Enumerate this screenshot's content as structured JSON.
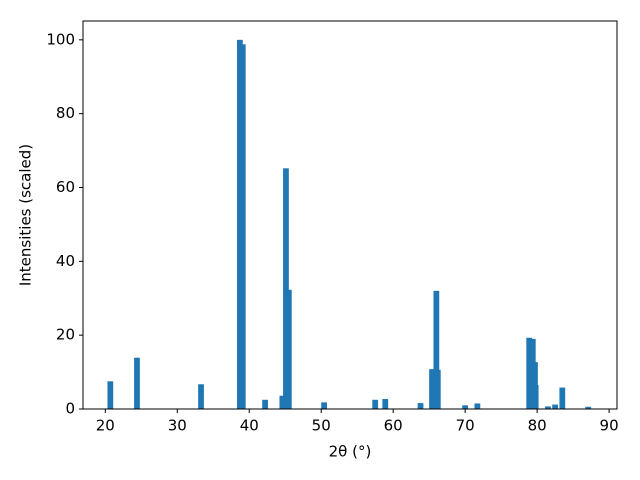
{
  "chart_data": {
    "type": "bar",
    "xlabel": "2θ (°)",
    "ylabel": "Intensities (scaled)",
    "x": [
      20.7,
      24.4,
      33.3,
      38.7,
      39.1,
      42.2,
      44.6,
      45.1,
      45.5,
      50.4,
      57.5,
      58.9,
      63.8,
      65.4,
      66.0,
      66.2,
      70.0,
      71.7,
      78.9,
      79.4,
      79.7,
      79.8,
      81.5,
      82.5,
      83.5,
      87.1
    ],
    "values": [
      7.5,
      13.9,
      6.7,
      100,
      98.8,
      2.5,
      3.6,
      65.2,
      32.3,
      1.8,
      2.5,
      2.7,
      1.6,
      10.8,
      32,
      10.6,
      1.0,
      1.5,
      19.3,
      19.0,
      12.7,
      6.5,
      0.7,
      1.2,
      5.8,
      0.6
    ],
    "color": "#1f77b4",
    "xlim": [
      16.9,
      91.1
    ],
    "ylim": [
      0,
      105.1
    ],
    "xticks": [
      20,
      30,
      40,
      50,
      60,
      70,
      80,
      90
    ],
    "yticks": [
      0,
      20,
      40,
      60,
      80,
      100
    ],
    "grid": false
  }
}
